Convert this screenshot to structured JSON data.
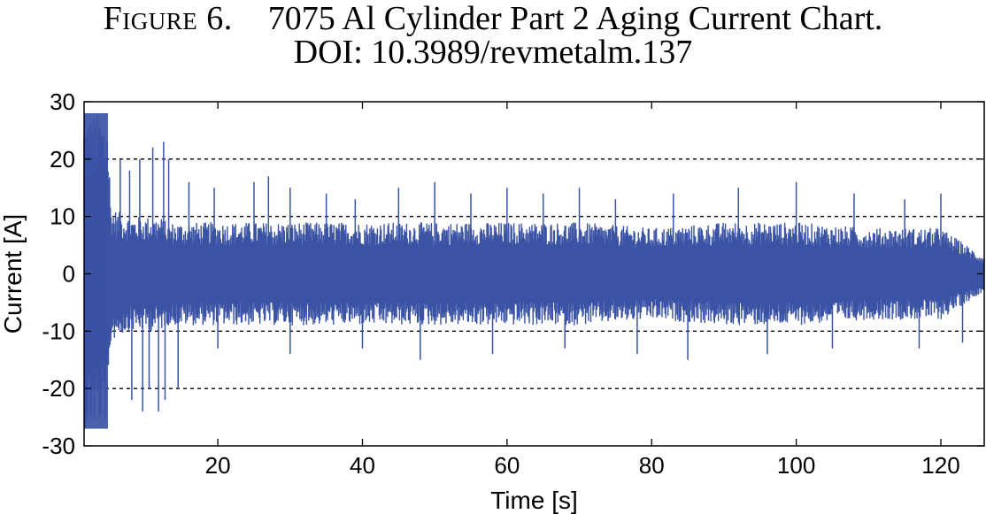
{
  "caption": {
    "label": "Figure 6.",
    "title": "7075 Al Cylinder Part 2 Aging Current Chart.",
    "doi": "DOI: 10.3989/revmetalm.137"
  },
  "chart_data": {
    "type": "line",
    "xlabel": "Time [s]",
    "ylabel": "Current [A]",
    "xlim": [
      1.5,
      126
    ],
    "ylim": [
      -30,
      30
    ],
    "xticks": [
      20,
      40,
      60,
      80,
      100,
      120
    ],
    "yticks": [
      -30,
      -20,
      -10,
      0,
      10,
      20,
      30
    ],
    "grid": "dashed horizontal at ±10, ±20",
    "series": [
      {
        "color": "#3a53a4",
        "envelope": {
          "x": [
            1.5,
            2,
            3,
            4,
            4.8,
            5.2,
            6,
            8,
            10,
            12,
            13,
            15,
            20,
            30,
            40,
            50,
            60,
            70,
            80,
            90,
            100,
            110,
            120,
            126
          ],
          "upper": [
            28,
            28,
            28,
            28,
            27,
            12,
            11,
            10,
            10,
            10,
            9,
            9,
            9,
            9,
            9,
            9,
            9,
            9,
            8,
            9,
            9,
            8,
            8,
            3
          ],
          "lower": [
            -27,
            -27,
            -27,
            -26,
            -26,
            -12,
            -11,
            -10,
            -10,
            -10,
            -9,
            -9,
            -9,
            -9,
            -9,
            -9,
            -9,
            -9,
            -8,
            -9,
            -9,
            -8,
            -8,
            -3
          ]
        },
        "spikes": [
          {
            "x": 6.5,
            "y": 20
          },
          {
            "x": 7.8,
            "y": 18
          },
          {
            "x": 9.2,
            "y": 20
          },
          {
            "x": 11.0,
            "y": 22
          },
          {
            "x": 12.5,
            "y": 23
          },
          {
            "x": 13.2,
            "y": 20
          },
          {
            "x": 8.1,
            "y": -22
          },
          {
            "x": 9.6,
            "y": -24
          },
          {
            "x": 10.5,
            "y": -20
          },
          {
            "x": 11.8,
            "y": -24
          },
          {
            "x": 12.7,
            "y": -22
          },
          {
            "x": 14.5,
            "y": -20
          },
          {
            "x": 16.0,
            "y": 16
          },
          {
            "x": 19.5,
            "y": 15
          },
          {
            "x": 25.0,
            "y": 16
          },
          {
            "x": 27.0,
            "y": 17
          },
          {
            "x": 30.0,
            "y": 15
          },
          {
            "x": 35.0,
            "y": 14
          },
          {
            "x": 39.0,
            "y": 13
          },
          {
            "x": 45.0,
            "y": 15
          },
          {
            "x": 50.0,
            "y": 16
          },
          {
            "x": 55.0,
            "y": 14
          },
          {
            "x": 60.0,
            "y": 15
          },
          {
            "x": 65.0,
            "y": 14
          },
          {
            "x": 70.0,
            "y": 15
          },
          {
            "x": 75.0,
            "y": 13
          },
          {
            "x": 83.0,
            "y": 14
          },
          {
            "x": 92.0,
            "y": 15
          },
          {
            "x": 100.0,
            "y": 16
          },
          {
            "x": 108.0,
            "y": 14
          },
          {
            "x": 115.0,
            "y": 13
          },
          {
            "x": 120.0,
            "y": 14
          },
          {
            "x": 20.0,
            "y": -13
          },
          {
            "x": 30.0,
            "y": -14
          },
          {
            "x": 40.0,
            "y": -13
          },
          {
            "x": 48.0,
            "y": -15
          },
          {
            "x": 58.0,
            "y": -14
          },
          {
            "x": 68.0,
            "y": -13
          },
          {
            "x": 78.0,
            "y": -14
          },
          {
            "x": 85.0,
            "y": -15
          },
          {
            "x": 96.0,
            "y": -14
          },
          {
            "x": 105.0,
            "y": -13
          },
          {
            "x": 117.0,
            "y": -13
          },
          {
            "x": 123.0,
            "y": -12
          }
        ]
      }
    ]
  }
}
